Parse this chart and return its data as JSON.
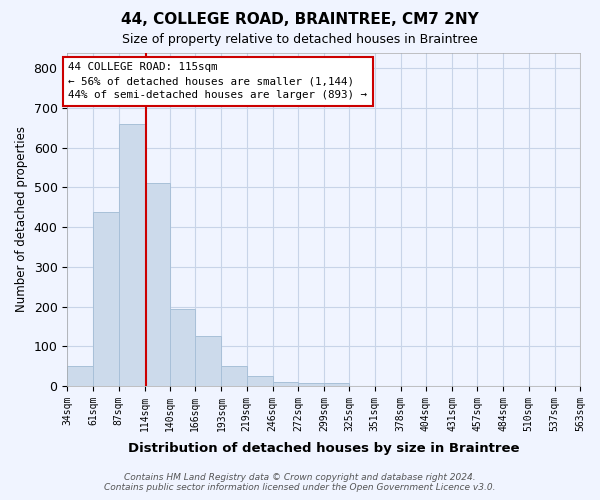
{
  "title": "44, COLLEGE ROAD, BRAINTREE, CM7 2NY",
  "subtitle": "Size of property relative to detached houses in Braintree",
  "xlabel": "Distribution of detached houses by size in Braintree",
  "ylabel": "Number of detached properties",
  "bar_values": [
    50,
    438,
    660,
    510,
    193,
    127,
    50,
    25,
    10,
    8,
    8,
    0,
    0,
    0,
    0,
    0,
    0,
    0,
    0,
    0
  ],
  "bin_edges": [
    34,
    61,
    87,
    114,
    140,
    166,
    193,
    219,
    246,
    272,
    299,
    325,
    351,
    378,
    404,
    431,
    457,
    484,
    510,
    537,
    563
  ],
  "x_tick_labels": [
    "34sqm",
    "61sqm",
    "87sqm",
    "114sqm",
    "140sqm",
    "166sqm",
    "193sqm",
    "219sqm",
    "246sqm",
    "272sqm",
    "299sqm",
    "325sqm",
    "351sqm",
    "378sqm",
    "404sqm",
    "431sqm",
    "457sqm",
    "484sqm",
    "510sqm",
    "537sqm",
    "563sqm"
  ],
  "bar_color": "#ccdaeb",
  "bar_edge_color": "#a8c0d8",
  "vline_x": 115,
  "vline_color": "#cc0000",
  "ylim": [
    0,
    840
  ],
  "yticks": [
    0,
    100,
    200,
    300,
    400,
    500,
    600,
    700,
    800
  ],
  "annotation_text": "44 COLLEGE ROAD: 115sqm\n← 56% of detached houses are smaller (1,144)\n44% of semi-detached houses are larger (893) →",
  "annotation_box_color": "#ffffff",
  "annotation_box_edge_color": "#cc0000",
  "footer_line1": "Contains HM Land Registry data © Crown copyright and database right 2024.",
  "footer_line2": "Contains public sector information licensed under the Open Government Licence v3.0.",
  "background_color": "#f0f4ff",
  "grid_color": "#c8d4e8"
}
